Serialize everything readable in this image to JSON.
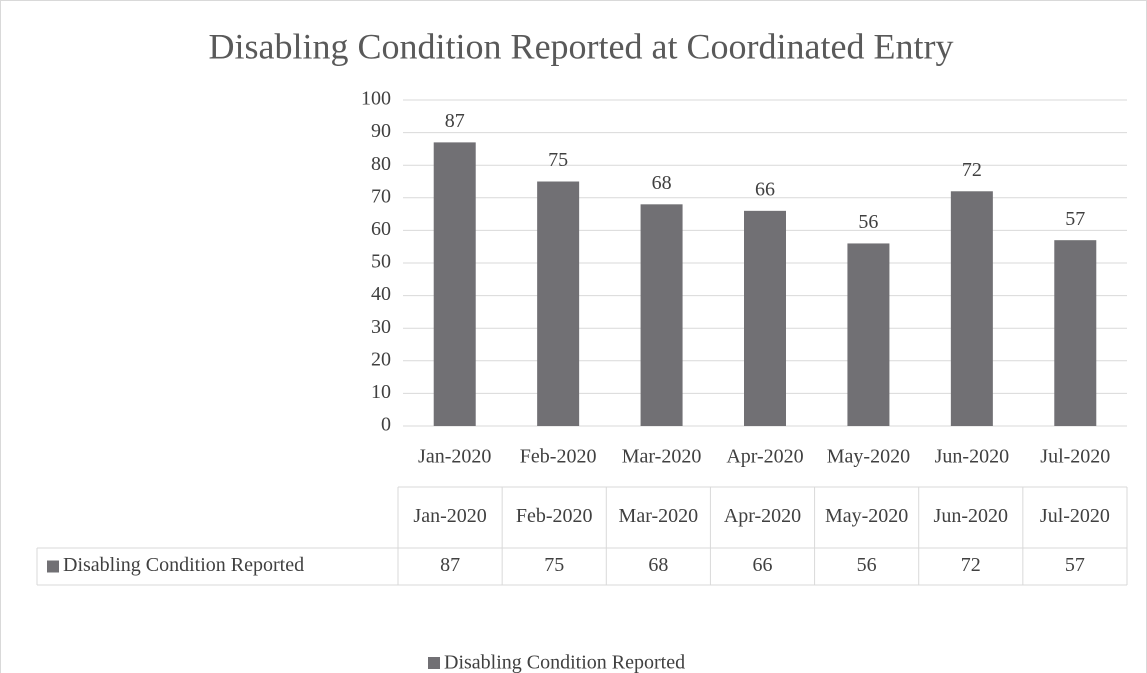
{
  "chart_data": {
    "type": "bar",
    "title": "Disabling Condition Reported at Coordinated Entry",
    "categories": [
      "Jan-2020",
      "Feb-2020",
      "Mar-2020",
      "Apr-2020",
      "May-2020",
      "Jun-2020",
      "Jul-2020"
    ],
    "series": [
      {
        "name": "Disabling Condition Reported",
        "color": "#717074",
        "values": [
          87,
          75,
          68,
          66,
          56,
          72,
          57
        ]
      }
    ],
    "ylim": [
      0,
      100
    ],
    "yticks": [
      0,
      10,
      20,
      30,
      40,
      50,
      60,
      70,
      80,
      90,
      100
    ],
    "grid": true,
    "legend": "bottom",
    "data_table": true
  }
}
